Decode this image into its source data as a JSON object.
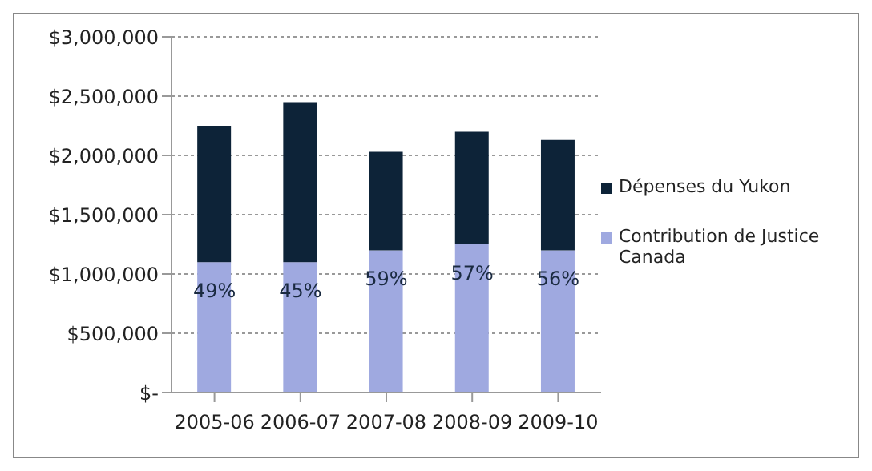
{
  "chart_data": {
    "type": "bar",
    "stacked": true,
    "categories": [
      "2005-06",
      "2006-07",
      "2007-08",
      "2008-09",
      "2009-10"
    ],
    "series": [
      {
        "name": "Contribution de Justice Canada",
        "color": "#9fa9e0",
        "values": [
          1100000,
          1100000,
          1200000,
          1250000,
          1200000
        ]
      },
      {
        "name": "Dépenses du Yukon",
        "color": "#0d2338",
        "values": [
          1150000,
          1350000,
          830000,
          950000,
          930000
        ]
      }
    ],
    "ylim": [
      0,
      3000000
    ],
    "yticks": [
      {
        "value": 0,
        "label": "$-"
      },
      {
        "value": 500000,
        "label": "$500,000"
      },
      {
        "value": 1000000,
        "label": "$1,000,000"
      },
      {
        "value": 1500000,
        "label": "$1,500,000"
      },
      {
        "value": 2000000,
        "label": "$2,000,000"
      },
      {
        "value": 2500000,
        "label": "$2,500,000"
      },
      {
        "value": 3000000,
        "label": "$3,000,000"
      }
    ],
    "annotations": [
      {
        "text": "49%",
        "x": "2005-06",
        "y": 1100000
      },
      {
        "text": "45%",
        "x": "2006-07",
        "y": 1100000
      },
      {
        "text": "59%",
        "x": "2007-08",
        "y": 1200000
      },
      {
        "text": "57%",
        "x": "2008-09",
        "y": 1250000
      },
      {
        "text": "56%",
        "x": "2009-10",
        "y": 1200000
      }
    ],
    "grid": "y",
    "legend": "right"
  }
}
